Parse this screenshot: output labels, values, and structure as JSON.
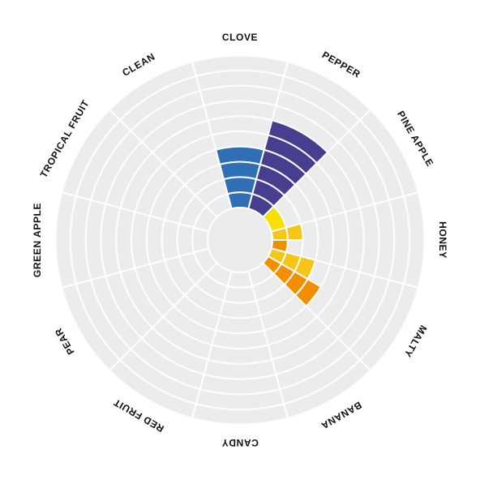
{
  "chart_data": {
    "type": "radial-bar",
    "categories": [
      "CLOVE",
      "PEPPER",
      "PINE APPLE",
      "HONEY",
      "MALTY",
      "BANANA",
      "CANDY",
      "RED FRUIT",
      "PEAR",
      "GREEN APPLE",
      "TROPICAL FRUIT",
      "CLEAN"
    ],
    "values": [
      4,
      6,
      1,
      0,
      0,
      0,
      0,
      0,
      0,
      0,
      0,
      0
    ],
    "overlays": [
      {
        "category": "HONEY",
        "values": [
          2,
          1
        ]
      },
      {
        "category": "MALTY",
        "values": [
          3,
          4
        ]
      }
    ],
    "series_colors": [
      "#2f6fb5",
      "#463e8f",
      "#f5e000",
      "#f5c518",
      "#f28f00",
      "#f5c518",
      "#f5c518",
      "#f5c518",
      "#0b8a5a",
      "#0b8a5a",
      "#0b8a5a",
      "#0b8a5a"
    ],
    "ring_count": 10,
    "r_max": 10,
    "grid": true
  },
  "colors": {
    "disc": "#ececec",
    "gridline": "#ffffff",
    "label": "#111111"
  }
}
